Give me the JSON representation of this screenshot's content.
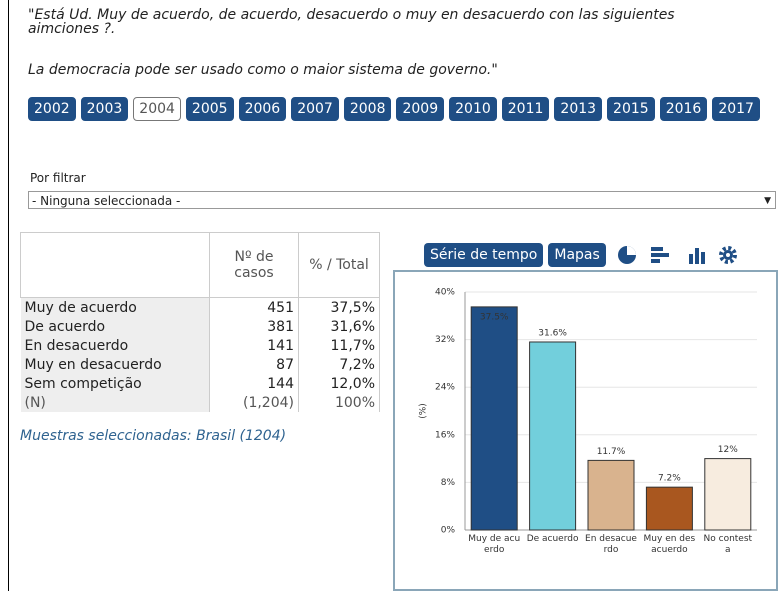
{
  "question": {
    "line1": "\"Está Ud. Muy de acuerdo, de acuerdo, desacuerdo o muy en desacuerdo con las siguientes aimciones ?.",
    "line2": "La democracia pode ser usado como o maior sistema de governo.\""
  },
  "years": [
    "2002",
    "2003",
    "2004",
    "2005",
    "2006",
    "2007",
    "2008",
    "2009",
    "2010",
    "2011",
    "2013",
    "2015",
    "2016",
    "2017"
  ],
  "filter": {
    "label": "Por filtrar",
    "selected": "- Ninguna seleccionada -"
  },
  "table": {
    "header": [
      "Nº de casos",
      "% / Total"
    ],
    "rows": [
      [
        "Muy de acuerdo",
        "451",
        "37,5%"
      ],
      [
        "De acuerdo",
        "381",
        "31,6%"
      ],
      [
        "En desacuerdo",
        "141",
        "11,7%"
      ],
      [
        "Muy en desacuerdo",
        "87",
        "7,2%"
      ],
      [
        "Sem competição",
        "144",
        "12,0%"
      ],
      [
        "(N)",
        "(1,204)",
        "100%"
      ]
    ],
    "note": "Muestras seleccionadas: Brasil (1204)"
  },
  "buttons": [
    "Série de tempo",
    "Mapas"
  ],
  "chart_data": {
    "type": "bar",
    "ylabel": "(%)",
    "categories": [
      "Muy de acuerdo",
      "De acuerdo",
      "En desacuerdo",
      "Muy en desacuerdo",
      "No contesta"
    ],
    "values": [
      37.5,
      31.6,
      11.7,
      7.2,
      12
    ],
    "value_labels": [
      "37.5%",
      "31.6%",
      "11.7%",
      "7.2%",
      "12%"
    ],
    "colors": [
      "#1f4e85",
      "#72cfdc",
      "#d9b38e",
      "#a9571f",
      "#f7ecdf"
    ],
    "ylim": [
      0,
      40
    ],
    "yticks": [
      {
        "value": 0,
        "label": "0%"
      },
      {
        "value": 8,
        "label": "8%"
      },
      {
        "value": 16,
        "label": "16%"
      },
      {
        "value": 24,
        "label": "24%"
      },
      {
        "value": 32,
        "label": "32%"
      },
      {
        "value": 40,
        "label": "40%"
      }
    ],
    "grid": true
  }
}
